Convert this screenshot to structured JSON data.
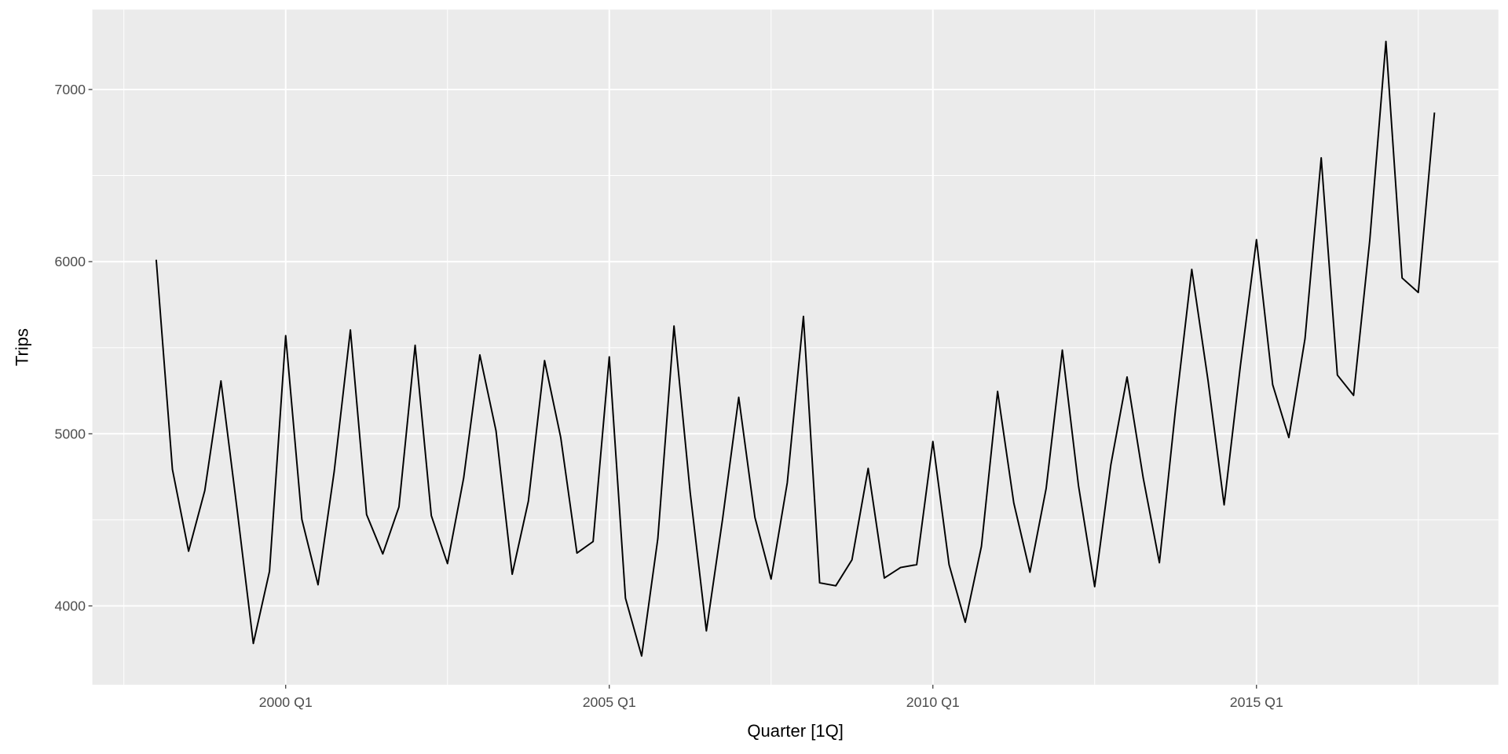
{
  "chart_data": {
    "type": "line",
    "title": "",
    "xlabel": "Quarter [1Q]",
    "ylabel": "Trips",
    "x_start": "1998 Q1",
    "x_end": "2017 Q4",
    "x_ticks": [
      "2000 Q1",
      "2005 Q1",
      "2010 Q1",
      "2015 Q1"
    ],
    "y_ticks": [
      4000,
      5000,
      6000,
      7000
    ],
    "ylim": [
      3542,
      7464
    ],
    "grid": true,
    "colors": {
      "panel": "#ebebeb",
      "grid": "#ffffff",
      "line": "#000000"
    },
    "series": [
      {
        "x": [
          "1998 Q1",
          "1998 Q2",
          "1998 Q3",
          "1998 Q4",
          "1999 Q1",
          "1999 Q2",
          "1999 Q3",
          "1999 Q4",
          "2000 Q1",
          "2000 Q2",
          "2000 Q3",
          "2000 Q4",
          "2001 Q1",
          "2001 Q2",
          "2001 Q3",
          "2001 Q4",
          "2002 Q1",
          "2002 Q2",
          "2002 Q3",
          "2002 Q4",
          "2003 Q1",
          "2003 Q2",
          "2003 Q3",
          "2003 Q4",
          "2004 Q1",
          "2004 Q2",
          "2004 Q3",
          "2004 Q4",
          "2005 Q1",
          "2005 Q2",
          "2005 Q3",
          "2005 Q4",
          "2006 Q1",
          "2006 Q2",
          "2006 Q3",
          "2006 Q4",
          "2007 Q1",
          "2007 Q2",
          "2007 Q3",
          "2007 Q4",
          "2008 Q1",
          "2008 Q2",
          "2008 Q3",
          "2008 Q4",
          "2009 Q1",
          "2009 Q2",
          "2009 Q3",
          "2009 Q4",
          "2010 Q1",
          "2010 Q2",
          "2010 Q3",
          "2010 Q4",
          "2011 Q1",
          "2011 Q2",
          "2011 Q3",
          "2011 Q4",
          "2012 Q1",
          "2012 Q2",
          "2012 Q3",
          "2012 Q4",
          "2013 Q1",
          "2013 Q2",
          "2013 Q3",
          "2013 Q4",
          "2014 Q1",
          "2014 Q2",
          "2014 Q3",
          "2014 Q4",
          "2015 Q1",
          "2015 Q2",
          "2015 Q3",
          "2015 Q4",
          "2016 Q1",
          "2016 Q2",
          "2016 Q3",
          "2016 Q4",
          "2017 Q1",
          "2017 Q2",
          "2017 Q3",
          "2017 Q4"
        ],
        "values": [
          6011,
          4793,
          4318,
          4670,
          5307,
          4559,
          3782,
          4201,
          5570,
          4503,
          4123,
          4782,
          5603,
          4531,
          4302,
          4575,
          5514,
          4525,
          4246,
          4743,
          5458,
          5017,
          4184,
          4609,
          5425,
          4978,
          4307,
          4374,
          5447,
          4045,
          3709,
          4391,
          5626,
          4659,
          3855,
          4503,
          5212,
          4514,
          4156,
          4715,
          5682,
          4134,
          4117,
          4268,
          4799,
          4162,
          4223,
          4240,
          4955,
          4240,
          3905,
          4346,
          5246,
          4598,
          4196,
          4682,
          5486,
          4698,
          4112,
          4821,
          5330,
          4743,
          4251,
          5145,
          5955,
          5313,
          4587,
          5391,
          6128,
          5285,
          4978,
          5553,
          6603,
          5341,
          5223,
          6123,
          7279,
          5905,
          5821,
          6866
        ]
      }
    ]
  }
}
